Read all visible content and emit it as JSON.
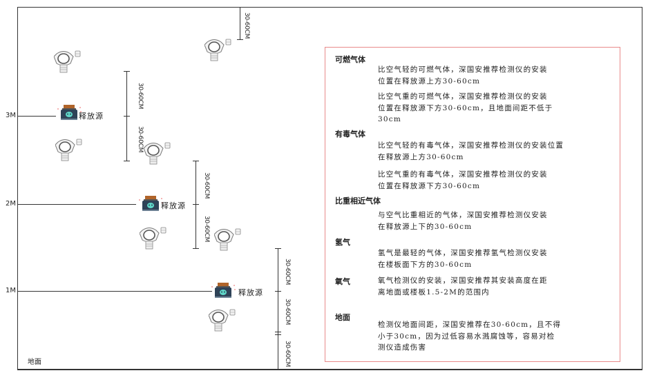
{
  "levels": {
    "m3": "3M",
    "m2": "2M",
    "m1": "1M",
    "ground": "地面"
  },
  "source_label": "释放源",
  "dimension_label": "30-60CM",
  "info": {
    "flammable": {
      "title": "可燃气体",
      "light_1": "比空气轻的可燃气体，深国安推荐检测仪的安装",
      "light_2": "位置在释放源上方30-60cm",
      "heavy_1": "比空气重的可燃气体，深国安推荐检测仪的安装",
      "heavy_2": "位置在释放源下方30-60cm，且地面间距不低于",
      "heavy_3": "30cm"
    },
    "toxic": {
      "title": "有毒气体",
      "light_1": "比空气轻的有毒气体，深国安推荐检测仪的安装位置",
      "light_2": "在释放源上方30-60cm",
      "heavy_1": "比空气重的有毒气体，深国安推荐检测仪的安装",
      "heavy_2": "位置在释放源下方30-60cm"
    },
    "similar": {
      "title": "比重相近气体",
      "line_1": "与空气比重相近的气体，深国安推荐检测仪安装",
      "line_2": "在释放源上下的30-60cm"
    },
    "hydrogen": {
      "title": "氢气",
      "line_1": "氢气是最轻的气体，深国安推荐氢气检测仪安装",
      "line_2": "在楼板面下方的30-60cm"
    },
    "oxygen": {
      "title": "氧气",
      "line_1": "氧气检测仪的安装，深国安推荐其安装高度在距",
      "line_2": "离地面或楼板1.5-2M的范围内"
    },
    "ground": {
      "title": "地面",
      "line_1": "检测仪地面间距，深国安推荐在30-60cm，且不得",
      "line_2": "小于30cm，因为过低容易水溅腐蚀等，容易对检",
      "line_3": "测仪造成伤害"
    }
  },
  "colors": {
    "frame": "#333333",
    "info_border": "#e88a8a",
    "source_body": "#2e4257",
    "source_cap": "#b0642a",
    "source_face": "#5fd6c8"
  }
}
